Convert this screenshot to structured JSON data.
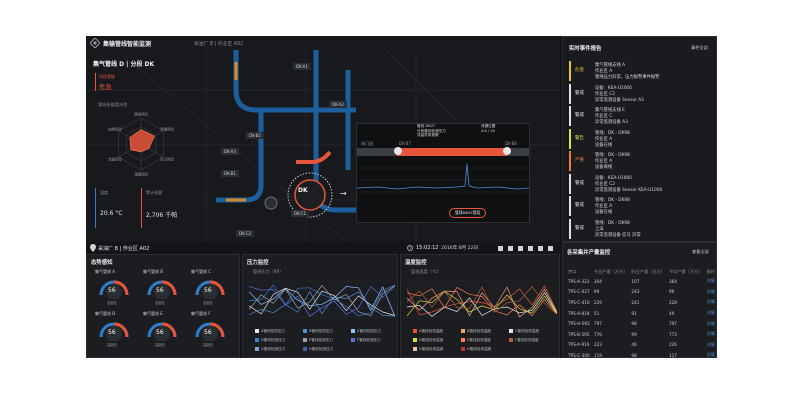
{
  "app": {
    "title": "集输管线智能监测",
    "breadcrumb": "采油厂 B | 作业区 A02"
  },
  "info": {
    "pipeline": "集气管线 D | 分段 DK",
    "level_label": "风险等级",
    "level_value": "危急",
    "radar_title": "管线多维度评估",
    "radar_axes": [
      "腐蚀风险",
      "泄漏风险",
      "压力风险",
      "温度风险",
      "流量风险",
      "结构风险"
    ],
    "radar_values": [
      0.55,
      0.6,
      0.35,
      0.3,
      0.45,
      0.5
    ],
    "temp_label": "温度",
    "temp_value": "20.6 °C",
    "flow_label": "累计流量",
    "flow_value": "2,706 千帕"
  },
  "map": {
    "labels": [
      "DK-A1",
      "DK-A2",
      "DK-A3",
      "DK-B1",
      "DK-B2",
      "DK-C1",
      "DK-C2"
    ],
    "dk_label": "DK",
    "arrow": "→"
  },
  "inset": {
    "start": "DK-B7",
    "end": "DK-B8",
    "side_label": "阀门段",
    "callout_left": "管线 DK07\n分段管线检测压力\n流量异常报警",
    "callout_right": "泄漏位置\n4.8 / 16",
    "button": "管线DK07管段"
  },
  "events": {
    "title": "实时事件报告",
    "action": "事件全部",
    "items": [
      {
        "level": "危害",
        "color": "#e8c23a",
        "lines": [
          "集气管线支线 A",
          "作业区 A",
          "管线压力异常，压力报警事件报警"
        ]
      },
      {
        "level": "警戒",
        "color": "#e0e0e0",
        "lines": [
          "设备：KEA-U1000",
          "作业区 C2",
          "异常监测设备 Sensor A3"
        ]
      },
      {
        "level": "警戒",
        "color": "#e0e0e0",
        "lines": [
          "集气管线支线 E",
          "作业区 C",
          "异常监测设备 A3"
        ]
      },
      {
        "level": "警告",
        "color": "#d6e04a",
        "lines": [
          "管线：DK - DK98",
          "作业区 A",
          "设备在线"
        ]
      },
      {
        "level": "严重",
        "color": "#f07a38",
        "lines": [
          "管线：DK - DK98",
          "作业区 A",
          "设备离线"
        ]
      },
      {
        "level": "警戒",
        "color": "#e0e0e0",
        "lines": [
          "设备：KEA-U1000",
          "作业区 C2",
          "异常监测设备 Sensor KEA-U1000"
        ]
      },
      {
        "level": "警戒",
        "color": "#e0e0e0",
        "lines": [
          "管线：DK - DK98",
          "作业区 A",
          "设备在线"
        ]
      },
      {
        "level": "警戒",
        "color": "#e0e0e0",
        "lines": [
          "管线：DK - DK98",
          "上海",
          "异常监测设备 信号 异常"
        ]
      }
    ]
  },
  "location": {
    "label": "采油厂 B | 作业区 A02",
    "time": "15:02:12",
    "date": "2016年 8月 22日"
  },
  "gauges": {
    "title": "态势感知",
    "items": [
      {
        "name": "集气管线 A",
        "value": "56",
        "unit": "温度值"
      },
      {
        "name": "集气管线 B",
        "value": "56",
        "unit": "温度值"
      },
      {
        "name": "集气管线 C",
        "value": "56",
        "unit": "温度值"
      },
      {
        "name": "集气管线 D",
        "value": "56",
        "unit": "温度值"
      },
      {
        "name": "集气管线 E",
        "value": "56",
        "unit": "温度值"
      },
      {
        "name": "集气管线 F",
        "value": "56",
        "unit": "温度值"
      }
    ]
  },
  "pressure": {
    "title": "压力监控",
    "subtitle": "管线压力（KP）",
    "legend": [
      "A管线检测压力",
      "B管线检测压力",
      "C管线检测压力",
      "D管线检测压力",
      "E管线检测压力",
      "F管线检测压力",
      "G管线检测压力",
      "H管线检测压力"
    ]
  },
  "temperature": {
    "title": "温度监控",
    "subtitle": "管线温度（℃）",
    "legend": [
      "A管线检测温度",
      "B管线检测温度",
      "C管线检测温度",
      "D管线检测温度",
      "E管线检测温度",
      "F管线检测温度",
      "G管线检测温度",
      "H管线检测温度"
    ]
  },
  "stations": {
    "title": "各采集井产量监控",
    "action": "查看全部",
    "headers": [
      "井口",
      "今日产量（万方）",
      "昨日产量（万方）",
      "平均产量（万方）",
      "操作"
    ],
    "rows": [
      [
        "TPS-A-323",
        "304",
        "107",
        "364",
        "详情"
      ],
      [
        "TPS-C-027",
        "99",
        "243",
        "99",
        "详情"
      ],
      [
        "TPS-C-410",
        "229",
        "241",
        "228",
        "详情"
      ],
      [
        "TPS-A-818",
        "51",
        "91",
        "49",
        "详情"
      ],
      [
        "TPS-H-002",
        "797",
        "98",
        "797",
        "详情"
      ],
      [
        "TPS-B-595",
        "776",
        "99",
        "773",
        "详情"
      ],
      [
        "TPS-A-919",
        "223",
        "46",
        "226",
        "详情"
      ],
      [
        "TPS-C-300",
        "119",
        "98",
        "117",
        "详情"
      ],
      [
        "TPS-C-200",
        "33",
        "41",
        "52",
        "详情"
      ],
      [
        "TPS-B-980",
        "12",
        "978",
        "12",
        "详情"
      ],
      [
        "TPS-A-476",
        "23",
        "98",
        "25",
        "详情"
      ]
    ]
  },
  "colors": {
    "accent": "#e8553a",
    "blue": "#2f7fd1",
    "bg": "#141518"
  }
}
